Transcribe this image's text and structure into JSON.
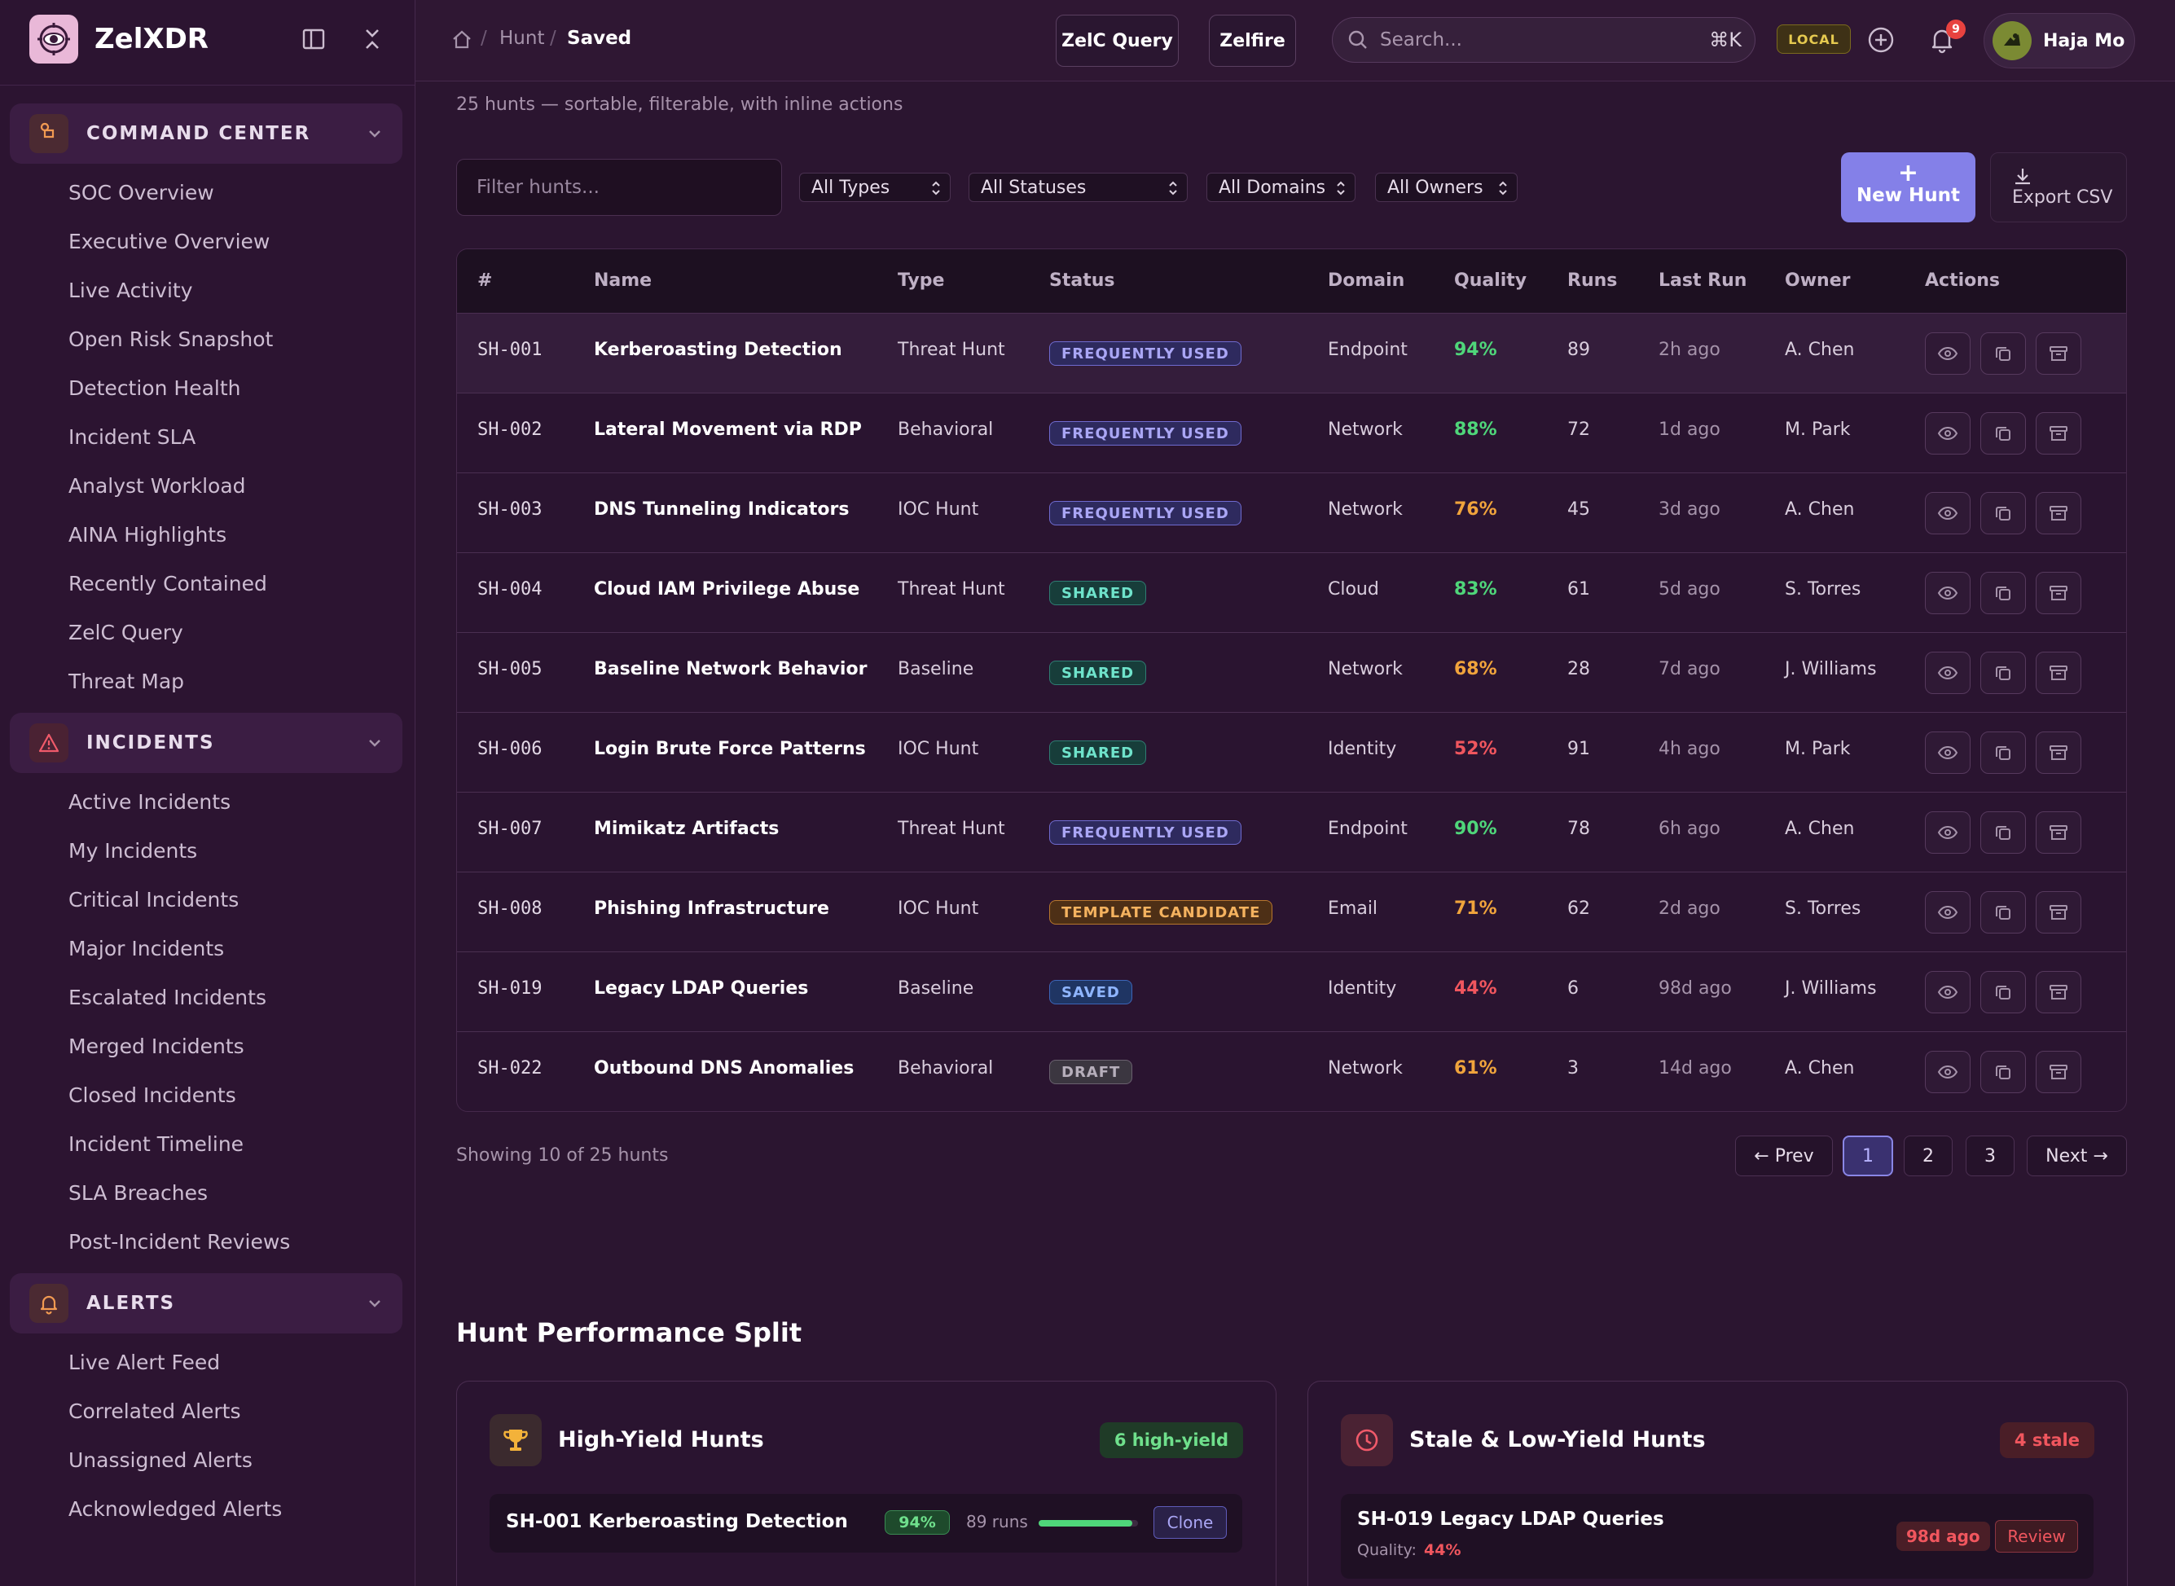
{
  "app": {
    "name": "ZelXDR"
  },
  "sidebar": {
    "sections": [
      {
        "title": "COMMAND CENTER",
        "icon": "command-icon",
        "items": [
          "SOC Overview",
          "Executive Overview",
          "Live Activity",
          "Open Risk Snapshot",
          "Detection Health",
          "Incident SLA",
          "Analyst Workload",
          "AINA Highlights",
          "Recently Contained",
          "ZelC Query",
          "Threat Map"
        ]
      },
      {
        "title": "INCIDENTS",
        "icon": "warning-triangle-icon",
        "items": [
          "Active Incidents",
          "My Incidents",
          "Critical Incidents",
          "Major Incidents",
          "Escalated Incidents",
          "Merged Incidents",
          "Closed Incidents",
          "Incident Timeline",
          "SLA Breaches",
          "Post-Incident Reviews"
        ]
      },
      {
        "title": "ALERTS",
        "icon": "bell-icon",
        "items": [
          "Live Alert Feed",
          "Correlated Alerts",
          "Unassigned Alerts",
          "Acknowledged Alerts"
        ]
      }
    ]
  },
  "topbar": {
    "breadcrumb": {
      "sep": "/",
      "parent": "Hunt",
      "current": "Saved"
    },
    "zelc_query": "ZelC Query",
    "zelfire": "Zelfire",
    "search_placeholder": "Search...",
    "search_shortcut": "⌘K",
    "env_badge": "LOCAL",
    "notification_count": "9",
    "user_name": "Haja Mo"
  },
  "page": {
    "subtitle": "25 hunts — sortable, filterable, with inline actions"
  },
  "filters": {
    "search_placeholder": "Filter hunts...",
    "types": "All Types",
    "statuses": "All Statuses",
    "domains": "All Domains",
    "owners": "All Owners"
  },
  "actions": {
    "new_hunt": "New Hunt",
    "plus": "+",
    "export_csv": "Export CSV"
  },
  "table": {
    "columns": [
      "#",
      "Name",
      "Type",
      "Status",
      "Domain",
      "Quality",
      "Runs",
      "Last Run",
      "Owner",
      "Actions"
    ],
    "rows": [
      {
        "id": "SH-001",
        "name": "Kerberoasting Detection",
        "type": "Threat Hunt",
        "status": "FREQUENTLY USED",
        "domain": "Endpoint",
        "quality": "94%",
        "runs": "89",
        "last_run": "2h ago",
        "owner": "A. Chen"
      },
      {
        "id": "SH-002",
        "name": "Lateral Movement via RDP",
        "type": "Behavioral",
        "status": "FREQUENTLY USED",
        "domain": "Network",
        "quality": "88%",
        "runs": "72",
        "last_run": "1d ago",
        "owner": "M. Park"
      },
      {
        "id": "SH-003",
        "name": "DNS Tunneling Indicators",
        "type": "IOC Hunt",
        "status": "FREQUENTLY USED",
        "domain": "Network",
        "quality": "76%",
        "runs": "45",
        "last_run": "3d ago",
        "owner": "A. Chen"
      },
      {
        "id": "SH-004",
        "name": "Cloud IAM Privilege Abuse",
        "type": "Threat Hunt",
        "status": "SHARED",
        "domain": "Cloud",
        "quality": "83%",
        "runs": "61",
        "last_run": "5d ago",
        "owner": "S. Torres"
      },
      {
        "id": "SH-005",
        "name": "Baseline Network Behavior",
        "type": "Baseline",
        "status": "SHARED",
        "domain": "Network",
        "quality": "68%",
        "runs": "28",
        "last_run": "7d ago",
        "owner": "J. Williams"
      },
      {
        "id": "SH-006",
        "name": "Login Brute Force Patterns",
        "type": "IOC Hunt",
        "status": "SHARED",
        "domain": "Identity",
        "quality": "52%",
        "runs": "91",
        "last_run": "4h ago",
        "owner": "M. Park"
      },
      {
        "id": "SH-007",
        "name": "Mimikatz Artifacts",
        "type": "Threat Hunt",
        "status": "FREQUENTLY USED",
        "domain": "Endpoint",
        "quality": "90%",
        "runs": "78",
        "last_run": "6h ago",
        "owner": "A. Chen"
      },
      {
        "id": "SH-008",
        "name": "Phishing Infrastructure",
        "type": "IOC Hunt",
        "status": "TEMPLATE CANDIDATE",
        "domain": "Email",
        "quality": "71%",
        "runs": "62",
        "last_run": "2d ago",
        "owner": "S. Torres"
      },
      {
        "id": "SH-019",
        "name": "Legacy LDAP Queries",
        "type": "Baseline",
        "status": "SAVED",
        "domain": "Identity",
        "quality": "44%",
        "runs": "6",
        "last_run": "98d ago",
        "owner": "J. Williams"
      },
      {
        "id": "SH-022",
        "name": "Outbound DNS Anomalies",
        "type": "Behavioral",
        "status": "DRAFT",
        "domain": "Network",
        "quality": "61%",
        "runs": "3",
        "last_run": "14d ago",
        "owner": "A. Chen"
      }
    ]
  },
  "pagination": {
    "showing": "Showing 10 of 25 hunts",
    "prev": "← Prev",
    "pages": [
      "1",
      "2",
      "3"
    ],
    "next": "Next →",
    "current": "1"
  },
  "performance": {
    "title": "Hunt Performance Split",
    "high_yield": {
      "title": "High-Yield Hunts",
      "badge": "6 high-yield",
      "item": {
        "name": "SH-001 Kerberoasting Detection",
        "quality": "94%",
        "runs": "89 runs",
        "progress": 0.94,
        "action": "Clone"
      }
    },
    "stale": {
      "title": "Stale & Low-Yield Hunts",
      "badge": "4 stale",
      "item": {
        "name": "SH-019 Legacy LDAP Queries",
        "quality_label": "Quality:",
        "quality": "44%",
        "age": "98d ago",
        "action": "Review"
      }
    }
  },
  "colors": {
    "accent": "#8480e8",
    "good": "#4fd67a",
    "warn": "#f0a43c",
    "bad": "#f0565e"
  }
}
